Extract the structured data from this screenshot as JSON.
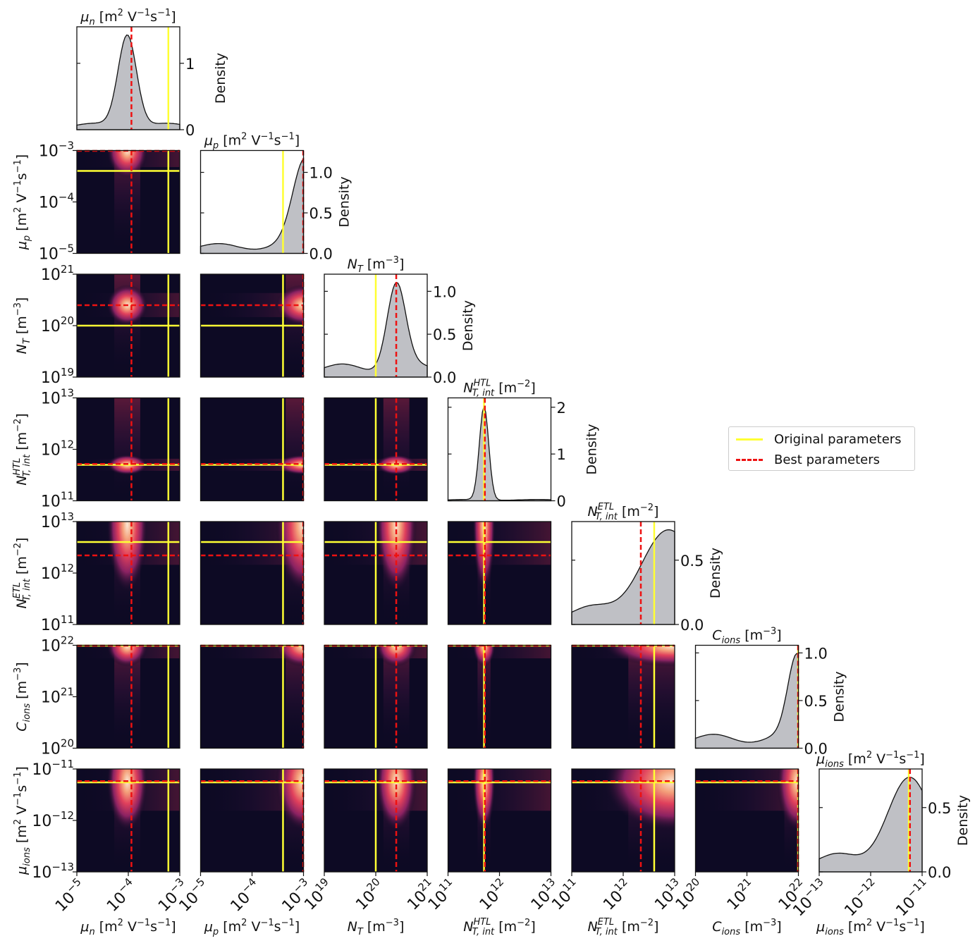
{
  "chart_data": {
    "type": "heatmap",
    "description_type": "corner-plot",
    "parameters": [
      {
        "key": "mun",
        "label": "μn [m² V⁻¹s⁻¹]",
        "sym": "μ",
        "sub": "n",
        "unit": "[m",
        "sup1": "2",
        "mid": " V",
        "sup2": "−1",
        "tail": "s",
        "sup3": "−1",
        "end": "]",
        "range_exp": [
          -5,
          -3
        ],
        "ticks": [
          "10−5",
          "10−4",
          "10−3"
        ],
        "original": 0.0006,
        "best": 0.000115
      },
      {
        "key": "mup",
        "label": "μp [m² V⁻¹s⁻¹]",
        "sym": "μ",
        "sub": "p",
        "unit": "[m",
        "sup1": "2",
        "mid": " V",
        "sup2": "−1",
        "tail": "s",
        "sup3": "−1",
        "end": "]",
        "range_exp": [
          -5,
          -3
        ],
        "ticks": [
          "10−5",
          "10−4",
          "10−3"
        ],
        "original": 0.0004,
        "best": 0.001
      },
      {
        "key": "nt",
        "label": "NT [m⁻³]",
        "sym": "N",
        "sub": "T",
        "unit": "[m",
        "sup1": "−3",
        "mid": "",
        "sup2": "",
        "tail": "",
        "sup3": "",
        "end": "]",
        "range_exp": [
          19,
          21
        ],
        "ticks": [
          "1019",
          "1020",
          "1021"
        ],
        "original": 1e+20,
        "best": 2.5e+20
      },
      {
        "key": "nhtl",
        "label": "N_T,int^HTL [m⁻²]",
        "sym": "N",
        "sub": "T, int",
        "supsym": "HTL",
        "unit": "[m",
        "sup1": "−2",
        "mid": "",
        "sup2": "",
        "tail": "",
        "sup3": "",
        "end": "]",
        "range_exp": [
          11,
          13
        ],
        "ticks": [
          "1011",
          "1012",
          "1013"
        ],
        "original": 500000000000.0,
        "best": 520000000000.0
      },
      {
        "key": "netl",
        "label": "N_T,int^ETL [m⁻²]",
        "sym": "N",
        "sub": "T, int",
        "supsym": "ETL",
        "unit": "[m",
        "sup1": "−2",
        "mid": "",
        "sup2": "",
        "tail": "",
        "sup3": "",
        "end": "]",
        "range_exp": [
          11,
          13
        ],
        "ticks": [
          "1011",
          "1012",
          "1013"
        ],
        "original": 4000000000000.0,
        "best": 2200000000000.0
      },
      {
        "key": "cion",
        "label": "C_ions [m⁻³]",
        "sym": "C",
        "sub": "ions",
        "unit": "[m",
        "sup1": "−3",
        "mid": "",
        "sup2": "",
        "tail": "",
        "sup3": "",
        "end": "]",
        "range_exp": [
          20,
          22
        ],
        "ticks": [
          "1020",
          "1021",
          "1022"
        ],
        "original": 1e+22,
        "best": 1e+22
      },
      {
        "key": "muion",
        "label": "μions [m² V⁻¹s⁻¹]",
        "sym": "μ",
        "sub": "ions",
        "unit": "[m",
        "sup1": "2",
        "mid": " V",
        "sup2": "−1",
        "tail": "s",
        "sup3": "−1",
        "end": "]",
        "range_exp": [
          -13,
          -11
        ],
        "ticks": [
          "10−13",
          "10−12",
          "10−11"
        ],
        "original": 5.5e-12,
        "best": 5.8e-12
      }
    ],
    "diagonal_yticks": [
      {
        "ticks": [
          0,
          1
        ],
        "labels": [
          "0",
          "1"
        ],
        "ymax": 1.55
      },
      {
        "ticks": [
          0,
          0.5,
          1.0
        ],
        "labels": [
          "0.0",
          "0.5",
          "1.0"
        ],
        "ymax": 1.27
      },
      {
        "ticks": [
          0,
          0.5,
          1.0
        ],
        "labels": [
          "0.0",
          "0.5",
          "1.0"
        ],
        "ymax": 1.2
      },
      {
        "ticks": [
          0,
          1,
          2
        ],
        "labels": [
          "0",
          "1",
          "2"
        ],
        "ymax": 2.2
      },
      {
        "ticks": [
          0,
          0.5
        ],
        "labels": [
          "0.0",
          "0.5"
        ],
        "ymax": 0.8
      },
      {
        "ticks": [
          0,
          0.5,
          1.0
        ],
        "labels": [
          "0.0",
          "0.5",
          "1.0"
        ],
        "ymax": 1.08
      },
      {
        "ticks": [
          0,
          0.5
        ],
        "labels": [
          "0.0",
          "0.5"
        ],
        "ymax": 0.8
      }
    ],
    "density_label": "Density",
    "legend": [
      {
        "label": "Original parameters",
        "color": "#ffff33",
        "style": "solid"
      },
      {
        "label": "Best parameters",
        "color": "#ee1111",
        "style": "dashed"
      }
    ],
    "marginal_peaks": [
      {
        "center": 0.49,
        "width": 0.09,
        "tail": 0.05
      },
      {
        "center": 1.02,
        "width": 0.12,
        "tail": 0.08
      },
      {
        "center": 0.7,
        "width": 0.09,
        "tail": 0.11
      },
      {
        "center": 0.35,
        "width": 0.045,
        "tail": 0.01
      },
      {
        "center": 0.97,
        "width": 0.3,
        "tail": 0.15
      },
      {
        "center": 0.99,
        "width": 0.09,
        "tail": 0.12
      },
      {
        "center": 0.88,
        "width": 0.22,
        "tail": 0.17
      }
    ]
  }
}
